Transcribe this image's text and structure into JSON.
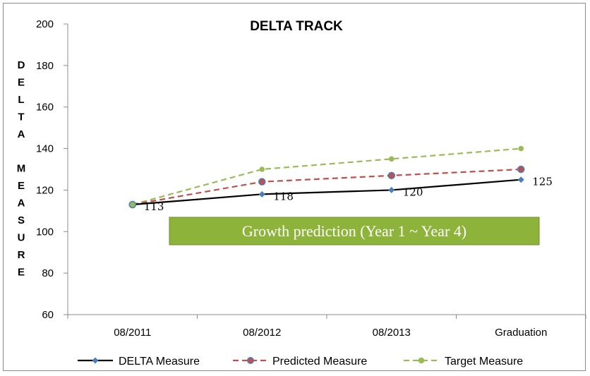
{
  "chart_data": {
    "type": "line",
    "title": "DELTA TRACK",
    "ylabel": "DELTA MEASURE",
    "xlabel": "",
    "categories": [
      "08/2011",
      "08/2012",
      "08/2013",
      "Graduation"
    ],
    "ylim": [
      60,
      200
    ],
    "yticks": [
      60,
      80,
      100,
      120,
      140,
      160,
      180,
      200
    ],
    "grid": false,
    "legend_position": "bottom",
    "series": [
      {
        "name": "DELTA Measure",
        "values": [
          113,
          118,
          120,
          125
        ],
        "color": "#000000",
        "dash": "solid",
        "marker": "diamond",
        "marker_color": "#4a7ebb",
        "data_labels": [
          "113",
          "118",
          "120",
          "125"
        ]
      },
      {
        "name": "Predicted Measure",
        "values": [
          113,
          124,
          127,
          130
        ],
        "color": "#c0504d",
        "dash": "dashed",
        "marker": "circle",
        "marker_color": "#c0504d",
        "marker_edge": "#4a7ebb"
      },
      {
        "name": "Target Measure",
        "values": [
          113,
          130,
          135,
          140
        ],
        "color": "#9bbb59",
        "dash": "dashed",
        "marker": "circle",
        "marker_color": "#9bbb59"
      }
    ],
    "annotation": {
      "text": "Growth prediction   (Year 1 ~ Year 4)",
      "fill": "#8db33a",
      "border": "#6f8f2a"
    }
  }
}
